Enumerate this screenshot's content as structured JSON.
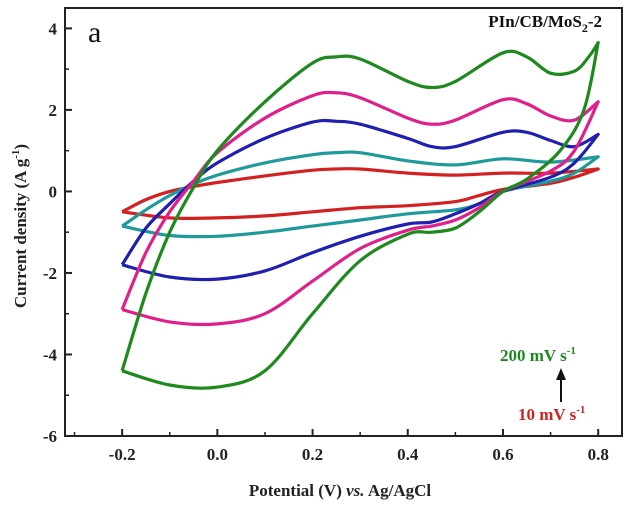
{
  "chart_data": {
    "type": "line",
    "panel_letter": "a",
    "sample_label": {
      "base": "PIn/CB/MoS",
      "sub": "2",
      "suffix": "-2"
    },
    "xlabel": {
      "prefix": "Potential (V) ",
      "italic": "vs.",
      "suffix": " Ag/AgCl"
    },
    "ylabel": {
      "prefix": "Current density (A g",
      "sup": "-1",
      "suffix": ")"
    },
    "xlim": [
      -0.32,
      0.85
    ],
    "ylim": [
      -6,
      4.5
    ],
    "xticks": [
      -0.2,
      0.0,
      0.2,
      0.4,
      0.6,
      0.8
    ],
    "xtick_labels": [
      "-0.2",
      "0.0",
      "0.2",
      "0.4",
      "0.6",
      "0.8"
    ],
    "yticks": [
      -6,
      -4,
      -2,
      0,
      2,
      4
    ],
    "ytick_labels": [
      "-6",
      "-4",
      "-2",
      "0",
      "2",
      "4"
    ],
    "grid": false,
    "annotations": {
      "top_rate": {
        "text": "200 mV s",
        "sup": "-1",
        "color": "#1e8a1e"
      },
      "bottom_rate": {
        "text": "10 mV s",
        "sup": "-1",
        "color": "#d42020"
      },
      "arrow": "upward"
    },
    "series": [
      {
        "color": "#d42020",
        "anodic": [
          [
            -0.2,
            -0.5
          ],
          [
            -0.15,
            -0.2
          ],
          [
            -0.1,
            0.0
          ],
          [
            -0.05,
            0.12
          ],
          [
            0.0,
            0.22
          ],
          [
            0.1,
            0.38
          ],
          [
            0.2,
            0.52
          ],
          [
            0.25,
            0.55
          ],
          [
            0.3,
            0.55
          ],
          [
            0.4,
            0.45
          ],
          [
            0.5,
            0.4
          ],
          [
            0.6,
            0.45
          ],
          [
            0.7,
            0.45
          ],
          [
            0.8,
            0.55
          ]
        ],
        "cathodic": [
          [
            0.8,
            0.55
          ],
          [
            0.75,
            0.35
          ],
          [
            0.7,
            0.2
          ],
          [
            0.6,
            0.05
          ],
          [
            0.55,
            -0.1
          ],
          [
            0.5,
            -0.25
          ],
          [
            0.4,
            -0.35
          ],
          [
            0.3,
            -0.4
          ],
          [
            0.2,
            -0.5
          ],
          [
            0.1,
            -0.6
          ],
          [
            0.0,
            -0.65
          ],
          [
            -0.1,
            -0.65
          ],
          [
            -0.2,
            -0.5
          ]
        ]
      },
      {
        "color": "#1f9a9a",
        "anodic": [
          [
            -0.2,
            -0.85
          ],
          [
            -0.15,
            -0.45
          ],
          [
            -0.1,
            -0.1
          ],
          [
            -0.05,
            0.18
          ],
          [
            0.0,
            0.4
          ],
          [
            0.1,
            0.7
          ],
          [
            0.2,
            0.9
          ],
          [
            0.25,
            0.95
          ],
          [
            0.3,
            0.95
          ],
          [
            0.4,
            0.75
          ],
          [
            0.5,
            0.65
          ],
          [
            0.6,
            0.8
          ],
          [
            0.7,
            0.72
          ],
          [
            0.8,
            0.85
          ]
        ],
        "cathodic": [
          [
            0.8,
            0.85
          ],
          [
            0.75,
            0.45
          ],
          [
            0.7,
            0.25
          ],
          [
            0.6,
            0.0
          ],
          [
            0.55,
            -0.3
          ],
          [
            0.5,
            -0.45
          ],
          [
            0.4,
            -0.55
          ],
          [
            0.3,
            -0.7
          ],
          [
            0.2,
            -0.85
          ],
          [
            0.1,
            -1.0
          ],
          [
            0.0,
            -1.1
          ],
          [
            -0.1,
            -1.08
          ],
          [
            -0.2,
            -0.85
          ]
        ]
      },
      {
        "color": "#2020b0",
        "anodic": [
          [
            -0.2,
            -1.8
          ],
          [
            -0.15,
            -0.9
          ],
          [
            -0.1,
            -0.3
          ],
          [
            -0.05,
            0.25
          ],
          [
            0.0,
            0.7
          ],
          [
            0.1,
            1.3
          ],
          [
            0.2,
            1.7
          ],
          [
            0.25,
            1.72
          ],
          [
            0.3,
            1.65
          ],
          [
            0.4,
            1.3
          ],
          [
            0.45,
            1.1
          ],
          [
            0.5,
            1.1
          ],
          [
            0.6,
            1.45
          ],
          [
            0.65,
            1.45
          ],
          [
            0.7,
            1.25
          ],
          [
            0.75,
            1.1
          ],
          [
            0.8,
            1.4
          ]
        ],
        "cathodic": [
          [
            0.8,
            1.4
          ],
          [
            0.75,
            0.7
          ],
          [
            0.7,
            0.35
          ],
          [
            0.6,
            0.0
          ],
          [
            0.55,
            -0.3
          ],
          [
            0.5,
            -0.55
          ],
          [
            0.45,
            -0.75
          ],
          [
            0.4,
            -0.8
          ],
          [
            0.3,
            -1.1
          ],
          [
            0.2,
            -1.5
          ],
          [
            0.1,
            -1.95
          ],
          [
            0.0,
            -2.15
          ],
          [
            -0.1,
            -2.1
          ],
          [
            -0.2,
            -1.8
          ]
        ]
      },
      {
        "color": "#e0208a",
        "anodic": [
          [
            -0.2,
            -2.9
          ],
          [
            -0.15,
            -1.5
          ],
          [
            -0.1,
            -0.5
          ],
          [
            -0.05,
            0.25
          ],
          [
            0.0,
            0.95
          ],
          [
            0.1,
            1.8
          ],
          [
            0.2,
            2.35
          ],
          [
            0.25,
            2.42
          ],
          [
            0.3,
            2.3
          ],
          [
            0.4,
            1.8
          ],
          [
            0.45,
            1.65
          ],
          [
            0.5,
            1.75
          ],
          [
            0.6,
            2.25
          ],
          [
            0.65,
            2.15
          ],
          [
            0.7,
            1.85
          ],
          [
            0.75,
            1.75
          ],
          [
            0.8,
            2.2
          ]
        ],
        "cathodic": [
          [
            0.8,
            2.2
          ],
          [
            0.75,
            1.0
          ],
          [
            0.7,
            0.5
          ],
          [
            0.6,
            0.0
          ],
          [
            0.55,
            -0.4
          ],
          [
            0.5,
            -0.7
          ],
          [
            0.45,
            -0.85
          ],
          [
            0.4,
            -0.95
          ],
          [
            0.3,
            -1.4
          ],
          [
            0.2,
            -2.2
          ],
          [
            0.1,
            -3.0
          ],
          [
            0.0,
            -3.25
          ],
          [
            -0.1,
            -3.2
          ],
          [
            -0.2,
            -2.9
          ]
        ]
      },
      {
        "color": "#1e8a1e",
        "anodic": [
          [
            -0.2,
            -4.4
          ],
          [
            -0.15,
            -2.5
          ],
          [
            -0.1,
            -1.0
          ],
          [
            -0.05,
            0.1
          ],
          [
            0.0,
            1.0
          ],
          [
            0.1,
            2.2
          ],
          [
            0.2,
            3.15
          ],
          [
            0.25,
            3.3
          ],
          [
            0.3,
            3.25
          ],
          [
            0.4,
            2.7
          ],
          [
            0.45,
            2.55
          ],
          [
            0.5,
            2.7
          ],
          [
            0.6,
            3.4
          ],
          [
            0.65,
            3.3
          ],
          [
            0.7,
            2.9
          ],
          [
            0.75,
            2.95
          ],
          [
            0.78,
            3.3
          ],
          [
            0.8,
            3.65
          ]
        ],
        "cathodic": [
          [
            0.8,
            3.65
          ],
          [
            0.77,
            2.0
          ],
          [
            0.72,
            1.0
          ],
          [
            0.65,
            0.3
          ],
          [
            0.6,
            0.0
          ],
          [
            0.55,
            -0.5
          ],
          [
            0.5,
            -0.9
          ],
          [
            0.45,
            -1.0
          ],
          [
            0.4,
            -1.05
          ],
          [
            0.3,
            -1.7
          ],
          [
            0.2,
            -3.0
          ],
          [
            0.1,
            -4.4
          ],
          [
            0.0,
            -4.8
          ],
          [
            -0.1,
            -4.75
          ],
          [
            -0.2,
            -4.4
          ]
        ]
      }
    ]
  }
}
